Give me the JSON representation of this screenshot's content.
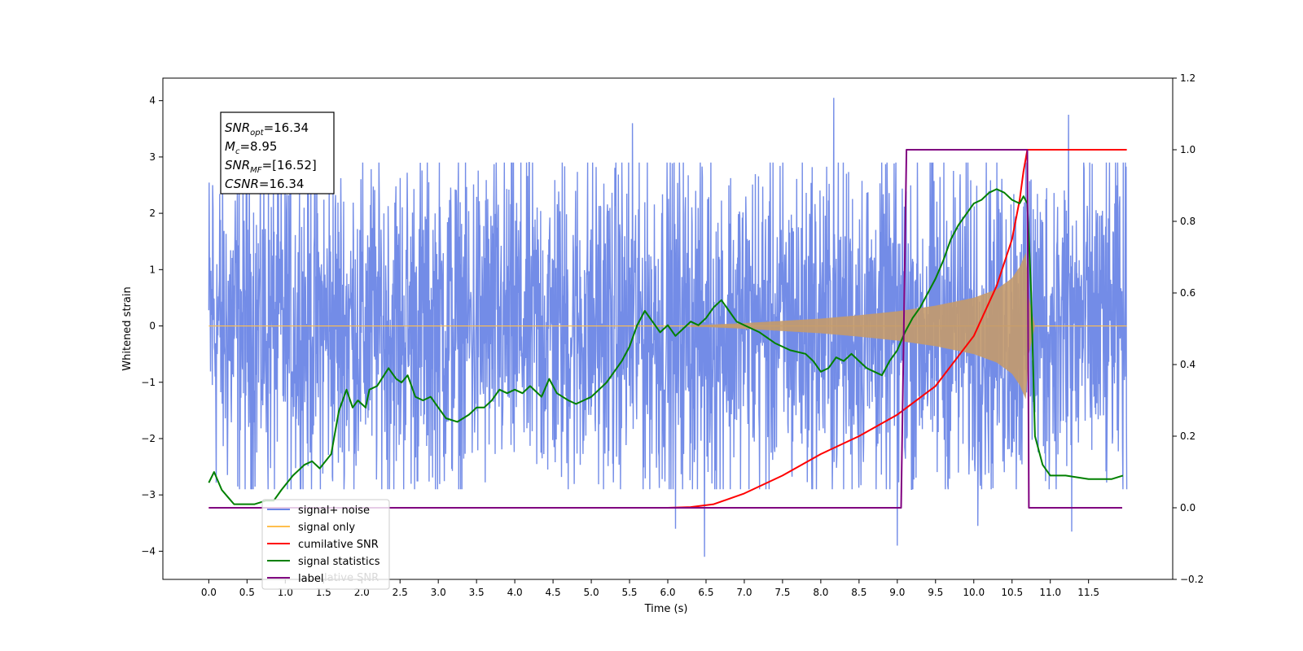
{
  "chart_data": {
    "type": "line",
    "title": "",
    "xlabel": "Time (s)",
    "ylabel": "Whitened strain",
    "xlim": [
      -0.6,
      12.6
    ],
    "ylim": [
      -4.5,
      4.4
    ],
    "ylim_right": [
      -0.2,
      1.2
    ],
    "grid": false,
    "x_ticks": [
      0.0,
      0.5,
      1.0,
      1.5,
      2.0,
      2.5,
      3.0,
      3.5,
      4.0,
      4.5,
      5.0,
      5.5,
      6.0,
      6.5,
      7.0,
      7.5,
      8.0,
      8.5,
      9.0,
      9.5,
      10.0,
      10.5,
      11.0,
      11.5
    ],
    "x_tick_labels": [
      "0.0",
      "0.5",
      "1.0",
      "1.5",
      "2.0",
      "2.5",
      "3.0",
      "3.5",
      "4.0",
      "4.5",
      "5.0",
      "5.5",
      "6.0",
      "6.5",
      "7.0",
      "7.5",
      "8.0",
      "8.5",
      "9.0",
      "9.5",
      "10.0",
      "10.5",
      "11.0",
      "11.5"
    ],
    "y_ticks": [
      -4,
      -3,
      -2,
      -1,
      0,
      1,
      2,
      3,
      4
    ],
    "y_tick_labels": [
      "−4",
      "−3",
      "−2",
      "−1",
      "0",
      "1",
      "2",
      "3",
      "4"
    ],
    "y_right_ticks": [
      -0.2,
      0.0,
      0.2,
      0.4,
      0.6,
      0.8,
      1.0,
      1.2
    ],
    "y_right_tick_labels": [
      "−0.2",
      "0.0",
      "0.2",
      "0.4",
      "0.6",
      "0.8",
      "1.0",
      "1.2"
    ],
    "legend_position": "lower-left",
    "legend": [
      {
        "label": "signal+ noise",
        "color": "#6b86e6"
      },
      {
        "label": "signal only",
        "color": "#ffbf4d"
      },
      {
        "label": "cumilative SNR",
        "color": "#ff0000"
      },
      {
        "label": "signal statistics",
        "color": "#008000"
      },
      {
        "label": "label",
        "color": "#800080"
      }
    ],
    "legend_ghost_text": "lative SNR",
    "annotation": {
      "lines": [
        {
          "base": "SNR",
          "sub": "opt",
          "rest": "=16.34"
        },
        {
          "base": "M",
          "sub": "c",
          "rest": "=8.95"
        },
        {
          "base": "SNR",
          "sub": "MF",
          "rest": "=[16.52]"
        },
        {
          "base": "CSNR",
          "sub": "",
          "rest": "=16.34"
        }
      ]
    },
    "series": [
      {
        "name": "signal+ noise",
        "axis": "left",
        "color": "#6b86e6",
        "x_range": [
          0.0,
          12.0
        ],
        "typical_amplitude": 1.5,
        "max": 4.05,
        "min": -4.1,
        "peaks": [
          [
            8.17,
            4.05
          ],
          [
            11.24,
            3.75
          ],
          [
            5.54,
            3.6
          ],
          [
            0.05,
            2.5
          ],
          [
            10.75,
            2.6
          ]
        ],
        "troughs": [
          [
            6.48,
            -4.1
          ],
          [
            11.28,
            -3.65
          ],
          [
            6.1,
            -3.6
          ],
          [
            10.05,
            -3.55
          ],
          [
            9.0,
            -3.9
          ]
        ]
      },
      {
        "name": "signal only",
        "axis": "left",
        "color": "#c49a6c",
        "envelope": {
          "x": [
            0.0,
            6.5,
            7.0,
            7.5,
            8.0,
            8.5,
            9.0,
            9.5,
            10.0,
            10.3,
            10.5,
            10.6,
            10.68,
            10.72,
            10.8,
            12.0
          ],
          "amp": [
            0.0,
            0.02,
            0.05,
            0.09,
            0.13,
            0.19,
            0.26,
            0.36,
            0.5,
            0.65,
            0.85,
            1.05,
            1.3,
            0.5,
            0.0,
            0.0
          ]
        }
      },
      {
        "name": "cumilative SNR",
        "axis": "right",
        "color": "#ff0000",
        "x": [
          0.0,
          6.0,
          6.3,
          6.6,
          7.0,
          7.5,
          8.0,
          8.5,
          9.0,
          9.5,
          10.0,
          10.3,
          10.5,
          10.6,
          10.65,
          10.7,
          10.75,
          12.0
        ],
        "y": [
          0.0,
          0.0,
          0.002,
          0.01,
          0.04,
          0.09,
          0.15,
          0.2,
          0.26,
          0.34,
          0.48,
          0.62,
          0.75,
          0.86,
          0.94,
          1.0,
          1.0,
          1.0
        ]
      },
      {
        "name": "signal statistics",
        "axis": "right",
        "color": "#008000",
        "x": [
          0.0,
          0.07,
          0.17,
          0.25,
          0.33,
          0.5,
          0.6,
          0.75,
          0.85,
          0.95,
          1.1,
          1.25,
          1.35,
          1.45,
          1.6,
          1.7,
          1.8,
          1.88,
          1.95,
          2.05,
          2.1,
          2.2,
          2.35,
          2.45,
          2.52,
          2.6,
          2.7,
          2.8,
          2.9,
          3.0,
          3.1,
          3.25,
          3.4,
          3.5,
          3.6,
          3.7,
          3.8,
          3.9,
          4.0,
          4.1,
          4.2,
          4.35,
          4.45,
          4.55,
          4.7,
          4.8,
          4.9,
          5.0,
          5.1,
          5.2,
          5.3,
          5.4,
          5.5,
          5.6,
          5.7,
          5.8,
          5.9,
          6.0,
          6.1,
          6.2,
          6.3,
          6.4,
          6.5,
          6.6,
          6.7,
          6.8,
          6.9,
          7.0,
          7.2,
          7.4,
          7.6,
          7.8,
          7.9,
          8.0,
          8.1,
          8.2,
          8.3,
          8.4,
          8.5,
          8.6,
          8.7,
          8.8,
          8.9,
          9.0,
          9.1,
          9.2,
          9.3,
          9.4,
          9.5,
          9.6,
          9.7,
          9.8,
          9.9,
          10.0,
          10.1,
          10.2,
          10.3,
          10.4,
          10.5,
          10.6,
          10.65,
          10.7,
          10.75,
          10.8,
          10.9,
          11.0,
          11.2,
          11.5,
          11.8,
          11.95
        ],
        "y": [
          0.07,
          0.1,
          0.05,
          0.03,
          0.01,
          0.01,
          0.01,
          0.02,
          0.02,
          0.05,
          0.09,
          0.12,
          0.13,
          0.11,
          0.15,
          0.27,
          0.33,
          0.28,
          0.3,
          0.28,
          0.33,
          0.34,
          0.39,
          0.36,
          0.35,
          0.37,
          0.31,
          0.3,
          0.31,
          0.28,
          0.25,
          0.24,
          0.26,
          0.28,
          0.28,
          0.3,
          0.33,
          0.32,
          0.33,
          0.32,
          0.34,
          0.31,
          0.36,
          0.32,
          0.3,
          0.29,
          0.3,
          0.31,
          0.33,
          0.35,
          0.38,
          0.41,
          0.45,
          0.51,
          0.55,
          0.52,
          0.49,
          0.51,
          0.48,
          0.5,
          0.52,
          0.51,
          0.53,
          0.56,
          0.58,
          0.55,
          0.52,
          0.51,
          0.49,
          0.46,
          0.44,
          0.43,
          0.41,
          0.38,
          0.39,
          0.42,
          0.41,
          0.43,
          0.41,
          0.39,
          0.38,
          0.37,
          0.41,
          0.44,
          0.49,
          0.53,
          0.56,
          0.6,
          0.64,
          0.69,
          0.75,
          0.79,
          0.82,
          0.85,
          0.86,
          0.88,
          0.89,
          0.88,
          0.86,
          0.85,
          0.87,
          0.85,
          0.6,
          0.2,
          0.12,
          0.09,
          0.09,
          0.08,
          0.08,
          0.09
        ]
      },
      {
        "name": "label",
        "axis": "right",
        "color": "#800080",
        "x": [
          0.0,
          9.05,
          9.12,
          10.7,
          10.72,
          10.75,
          11.94
        ],
        "y": [
          0.0,
          0.0,
          1.0,
          1.0,
          0.0,
          0.0,
          0.0
        ]
      }
    ]
  }
}
